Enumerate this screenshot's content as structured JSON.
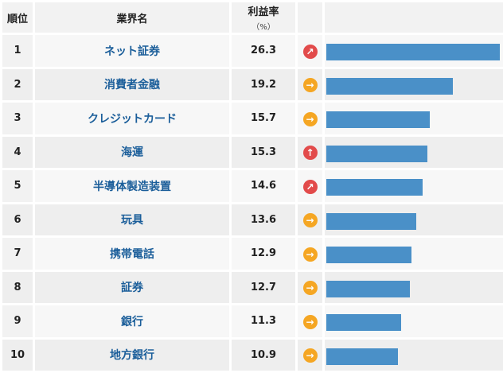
{
  "header": {
    "rank": "順位",
    "industry": "業界名",
    "profit_rate": "利益率",
    "profit_rate_unit": "（%）"
  },
  "rows": [
    {
      "rank": "1",
      "industry": "ネット証券",
      "value": 26.3,
      "value_label": "26.3",
      "trend": "up-right",
      "trend_icon": "arrow-up-right-icon",
      "trend_color": "#e24b4b"
    },
    {
      "rank": "2",
      "industry": "消費者金融",
      "value": 19.2,
      "value_label": "19.2",
      "trend": "right",
      "trend_icon": "arrow-right-icon",
      "trend_color": "#f5a623"
    },
    {
      "rank": "3",
      "industry": "クレジットカード",
      "value": 15.7,
      "value_label": "15.7",
      "trend": "right",
      "trend_icon": "arrow-right-icon",
      "trend_color": "#f5a623"
    },
    {
      "rank": "4",
      "industry": "海運",
      "value": 15.3,
      "value_label": "15.3",
      "trend": "up",
      "trend_icon": "arrow-up-icon",
      "trend_color": "#e24b4b"
    },
    {
      "rank": "5",
      "industry": "半導体製造装置",
      "value": 14.6,
      "value_label": "14.6",
      "trend": "up-right",
      "trend_icon": "arrow-up-right-icon",
      "trend_color": "#e24b4b"
    },
    {
      "rank": "6",
      "industry": "玩具",
      "value": 13.6,
      "value_label": "13.6",
      "trend": "right",
      "trend_icon": "arrow-right-icon",
      "trend_color": "#f5a623"
    },
    {
      "rank": "7",
      "industry": "携帯電話",
      "value": 12.9,
      "value_label": "12.9",
      "trend": "right",
      "trend_icon": "arrow-right-icon",
      "trend_color": "#f5a623"
    },
    {
      "rank": "8",
      "industry": "証券",
      "value": 12.7,
      "value_label": "12.7",
      "trend": "right",
      "trend_icon": "arrow-right-icon",
      "trend_color": "#f5a623"
    },
    {
      "rank": "9",
      "industry": "銀行",
      "value": 11.3,
      "value_label": "11.3",
      "trend": "right",
      "trend_icon": "arrow-right-icon",
      "trend_color": "#f5a623"
    },
    {
      "rank": "10",
      "industry": "地方銀行",
      "value": 10.9,
      "value_label": "10.9",
      "trend": "right",
      "trend_icon": "arrow-right-icon",
      "trend_color": "#f5a623"
    }
  ],
  "colors": {
    "bar": "#4a90c8",
    "industry_text": "#1b5e9a"
  }
}
